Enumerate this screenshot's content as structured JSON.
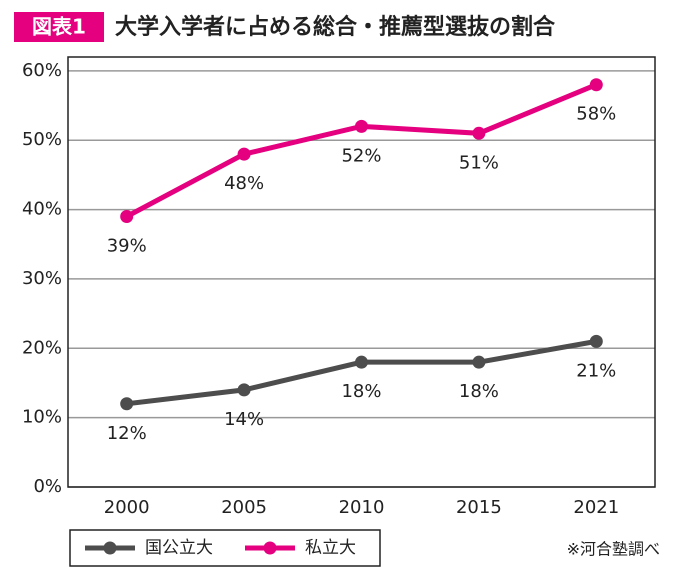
{
  "chart_data": {
    "type": "line",
    "badge": "図表1",
    "title": "大学入学者に占める総合・推薦型選抜の割合",
    "categories": [
      "2000",
      "2005",
      "2010",
      "2015",
      "2021"
    ],
    "series": [
      {
        "name": "国公立大",
        "color": "#4d4d4d",
        "values": [
          12,
          14,
          18,
          18,
          21
        ],
        "value_labels": [
          "12%",
          "14%",
          "18%",
          "18%",
          "21%"
        ]
      },
      {
        "name": "私立大",
        "color": "#e4007f",
        "values": [
          39,
          48,
          52,
          51,
          58
        ],
        "value_labels": [
          "39%",
          "48%",
          "52%",
          "51%",
          "58%"
        ]
      }
    ],
    "ylim": [
      0,
      62
    ],
    "yticks": [
      {
        "value": 0,
        "label": "0%"
      },
      {
        "value": 10,
        "label": "10%"
      },
      {
        "value": 20,
        "label": "20%"
      },
      {
        "value": 30,
        "label": "30%"
      },
      {
        "value": 40,
        "label": "40%"
      },
      {
        "value": 50,
        "label": "50%"
      },
      {
        "value": 60,
        "label": "60%"
      }
    ],
    "grid": true,
    "source": "※河合塾調べ"
  }
}
